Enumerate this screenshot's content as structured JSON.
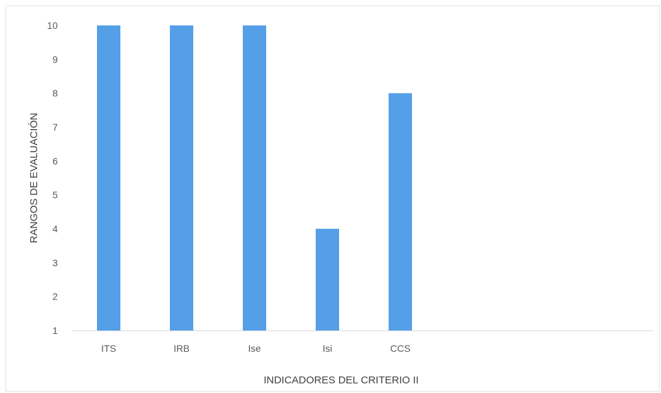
{
  "chart_data": {
    "type": "bar",
    "categories": [
      "ITS",
      "IRB",
      "Ise",
      "Isi",
      "CCS"
    ],
    "values": [
      10,
      10,
      10,
      4,
      8
    ],
    "title": "",
    "xlabel": "INDICADORES DEL CRITERIO II",
    "ylabel": "RANGOS DE EVALUACIÓN",
    "ylim": [
      1,
      10
    ],
    "yticks": [
      "1",
      "2",
      "3",
      "4",
      "5",
      "6",
      "7",
      "8",
      "9",
      "10"
    ],
    "grid": false,
    "legend": "none",
    "colors": {
      "bar": "#559FE8",
      "axis": "#d9d9d9",
      "text": "#595959"
    }
  }
}
